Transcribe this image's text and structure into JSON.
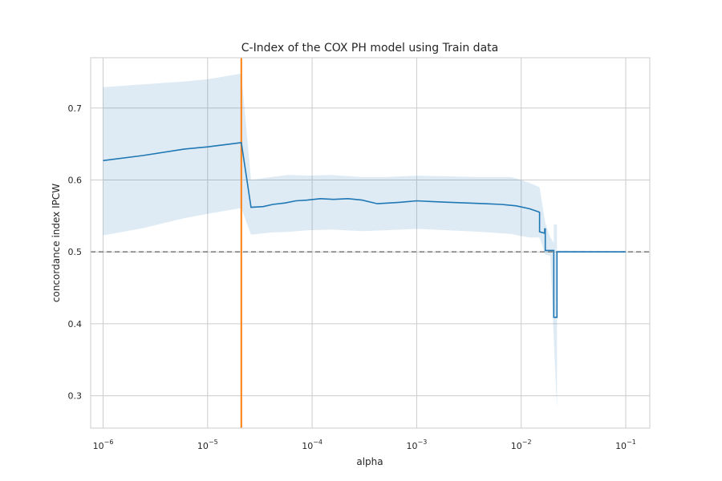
{
  "chart_data": {
    "type": "line",
    "title": "C-Index of the COX PH model using Train data",
    "xlabel": "alpha",
    "ylabel": "concordance index IPCW",
    "x_scale": "log",
    "xlim": [
      7.6e-07,
      0.17
    ],
    "ylim": [
      0.255,
      0.77
    ],
    "grid": true,
    "x_ticks": [
      {
        "value": 1e-06,
        "base": "10",
        "exp": "−6"
      },
      {
        "value": 1e-05,
        "base": "10",
        "exp": "−5"
      },
      {
        "value": 0.0001,
        "base": "10",
        "exp": "−4"
      },
      {
        "value": 0.001,
        "base": "10",
        "exp": "−3"
      },
      {
        "value": 0.01,
        "base": "10",
        "exp": "−2"
      },
      {
        "value": 0.1,
        "base": "10",
        "exp": "−1"
      }
    ],
    "y_ticks": [
      "0.3",
      "0.4",
      "0.5",
      "0.6",
      "0.7"
    ],
    "series": [
      {
        "color": "#1f77b4",
        "points": [
          [
            1e-06,
            0.627
          ],
          [
            2.4e-06,
            0.634
          ],
          [
            6e-06,
            0.643
          ],
          [
            1e-05,
            0.646
          ],
          [
            2.1e-05,
            0.652
          ],
          [
            2.6e-05,
            0.562
          ],
          [
            3.4e-05,
            0.563
          ],
          [
            4.2e-05,
            0.566
          ],
          [
            5.5e-05,
            0.568
          ],
          [
            7e-05,
            0.571
          ],
          [
            9e-05,
            0.572
          ],
          [
            0.00012,
            0.574
          ],
          [
            0.00016,
            0.573
          ],
          [
            0.00022,
            0.574
          ],
          [
            0.0003,
            0.572
          ],
          [
            0.00042,
            0.567
          ],
          [
            0.00055,
            0.568
          ],
          [
            0.0007,
            0.569
          ],
          [
            0.001,
            0.571
          ],
          [
            0.0014,
            0.57
          ],
          [
            0.002,
            0.569
          ],
          [
            0.003,
            0.568
          ],
          [
            0.0045,
            0.567
          ],
          [
            0.0065,
            0.566
          ],
          [
            0.009,
            0.564
          ],
          [
            0.012,
            0.56
          ],
          [
            0.0145,
            0.556
          ],
          [
            0.015,
            0.555
          ],
          [
            0.015,
            0.528
          ],
          [
            0.0168,
            0.526
          ],
          [
            0.0168,
            0.532
          ],
          [
            0.017,
            0.532
          ],
          [
            0.017,
            0.502
          ],
          [
            0.0205,
            0.502
          ],
          [
            0.0205,
            0.409
          ],
          [
            0.022,
            0.409
          ],
          [
            0.022,
            0.5
          ],
          [
            0.1,
            0.5
          ]
        ],
        "band_upper": [
          [
            1e-06,
            0.729
          ],
          [
            2.4e-06,
            0.733
          ],
          [
            6e-06,
            0.737
          ],
          [
            1e-05,
            0.74
          ],
          [
            2.1e-05,
            0.748
          ],
          [
            2.6e-05,
            0.6
          ],
          [
            4e-05,
            0.604
          ],
          [
            6e-05,
            0.607
          ],
          [
            9e-05,
            0.606
          ],
          [
            0.00015,
            0.607
          ],
          [
            0.0003,
            0.604
          ],
          [
            0.0005,
            0.604
          ],
          [
            0.001,
            0.606
          ],
          [
            0.002,
            0.605
          ],
          [
            0.004,
            0.604
          ],
          [
            0.008,
            0.604
          ],
          [
            0.01,
            0.6
          ],
          [
            0.012,
            0.596
          ],
          [
            0.015,
            0.59
          ],
          [
            0.017,
            0.54
          ],
          [
            0.019,
            0.52
          ],
          [
            0.0205,
            0.513
          ],
          [
            0.0205,
            0.538
          ],
          [
            0.022,
            0.538
          ],
          [
            0.022,
            0.502
          ],
          [
            0.1,
            0.501
          ]
        ],
        "band_lower": [
          [
            1e-06,
            0.523
          ],
          [
            2.4e-06,
            0.533
          ],
          [
            6e-06,
            0.547
          ],
          [
            1e-05,
            0.553
          ],
          [
            2.1e-05,
            0.561
          ],
          [
            2.6e-05,
            0.524
          ],
          [
            4e-05,
            0.527
          ],
          [
            6e-05,
            0.528
          ],
          [
            9e-05,
            0.53
          ],
          [
            0.00015,
            0.531
          ],
          [
            0.0003,
            0.529
          ],
          [
            0.0005,
            0.53
          ],
          [
            0.001,
            0.532
          ],
          [
            0.002,
            0.53
          ],
          [
            0.004,
            0.528
          ],
          [
            0.008,
            0.525
          ],
          [
            0.01,
            0.522
          ],
          [
            0.012,
            0.52
          ],
          [
            0.015,
            0.52
          ],
          [
            0.017,
            0.496
          ],
          [
            0.019,
            0.495
          ],
          [
            0.0205,
            0.38
          ],
          [
            0.022,
            0.28
          ],
          [
            0.022,
            0.499
          ],
          [
            0.1,
            0.499
          ]
        ]
      }
    ],
    "vertical_line": {
      "x": 2.1e-05,
      "color": "#ff7f0e"
    },
    "horizontal_line": {
      "y": 0.5,
      "color": "#808080",
      "style": "dashed"
    }
  }
}
